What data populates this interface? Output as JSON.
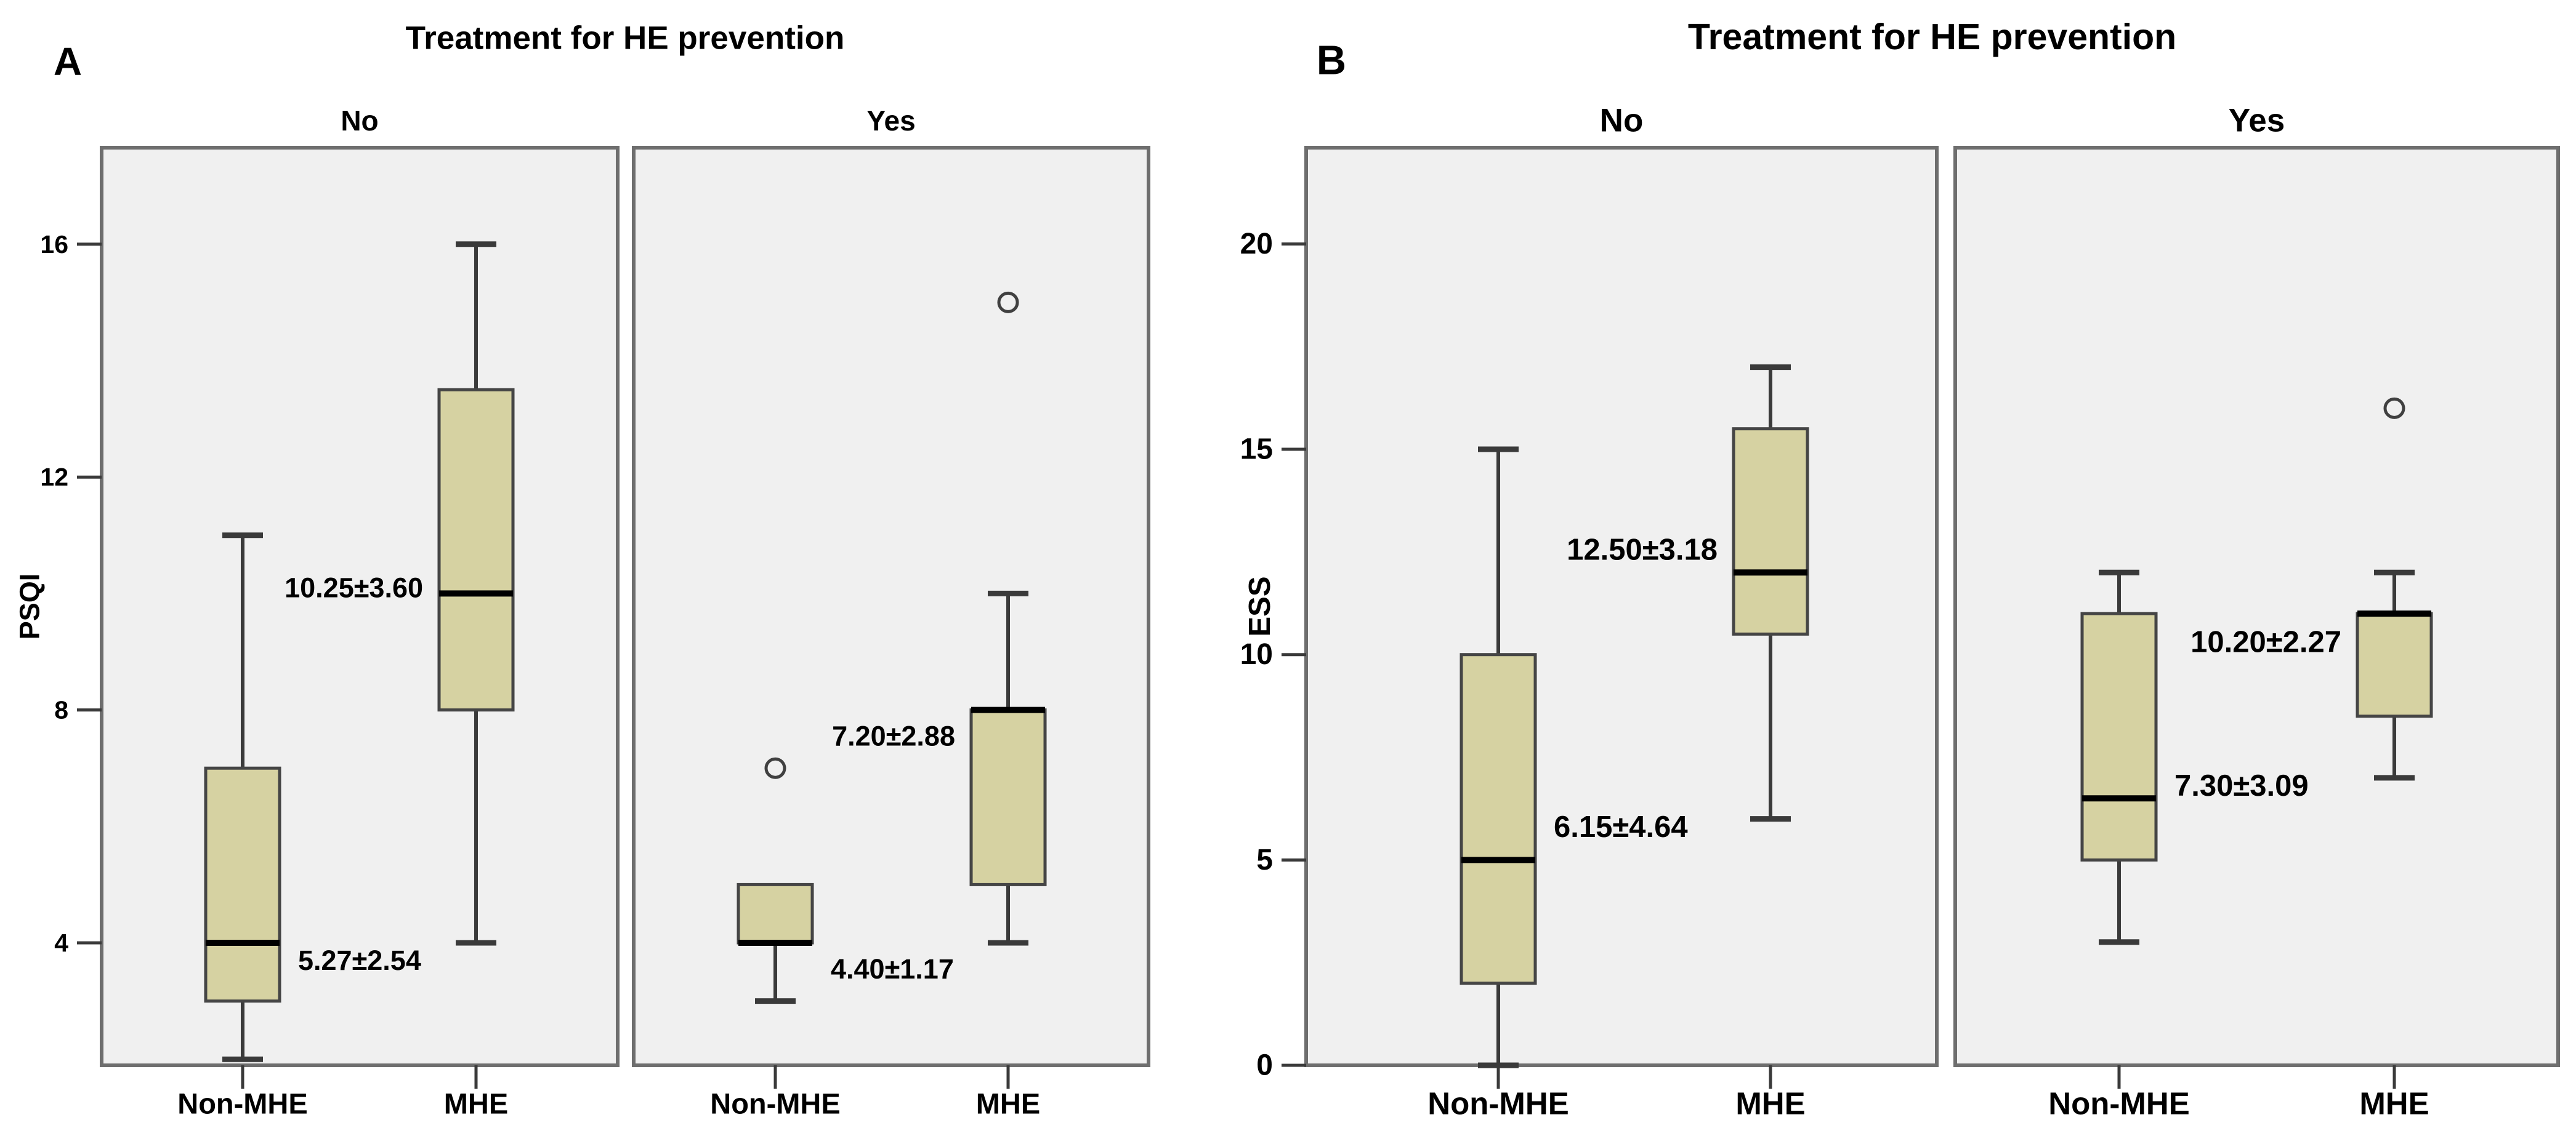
{
  "page": {
    "background_color": "#ffffff"
  },
  "style": {
    "box_fill": "#d6d2a2",
    "box_border": "#454545",
    "median_color": "#000000",
    "whisker_color": "#3a3a3a",
    "panel_background": "#f0f0f0",
    "panel_border": "#6e6e6e",
    "outlier_color": "#404040",
    "text_color": "#000000"
  },
  "chart_data": [
    {
      "type": "boxplot",
      "figure_label": "A",
      "title": "Treatment for HE prevention",
      "ylabel": "PSQI",
      "yticks": [
        4,
        8,
        12,
        16
      ],
      "ylim": [
        1.9,
        17.7
      ],
      "grid": false,
      "x_categories": [
        "Non-MHE",
        "MHE"
      ],
      "facets": [
        {
          "label": "No",
          "groups": [
            {
              "category": "Non-MHE",
              "whisker_low": 2,
              "q1": 3,
              "median": 4,
              "q3": 7,
              "whisker_high": 11,
              "outliers": [],
              "mean_sd": "5.27±2.54",
              "label_side": "right",
              "label_at": 3.7
            },
            {
              "category": "MHE",
              "whisker_low": 4,
              "q1": 8,
              "median": 10,
              "q3": 13.5,
              "whisker_high": 16,
              "outliers": [],
              "mean_sd": "10.25±3.60",
              "label_side": "left",
              "label_at": 10.1
            }
          ]
        },
        {
          "label": "Yes",
          "groups": [
            {
              "category": "Non-MHE",
              "whisker_low": 3,
              "q1": 4,
              "median": 4,
              "q3": 5,
              "whisker_high": 5,
              "outliers": [
                7
              ],
              "mean_sd": "4.40±1.17",
              "label_side": "right",
              "label_at": 3.55
            },
            {
              "category": "MHE",
              "whisker_low": 4,
              "q1": 5,
              "median": 8,
              "q3": 8,
              "whisker_high": 10,
              "outliers": [
                15
              ],
              "mean_sd": "7.20±2.88",
              "label_side": "left",
              "label_at": 7.55
            }
          ]
        }
      ]
    },
    {
      "type": "boxplot",
      "figure_label": "B",
      "title": "Treatment for HE prevention",
      "ylabel": "ESS",
      "yticks": [
        0,
        5,
        10,
        15,
        20
      ],
      "ylim": [
        0,
        22.3
      ],
      "grid": false,
      "x_categories": [
        "Non-MHE",
        "MHE"
      ],
      "facets": [
        {
          "label": "No",
          "groups": [
            {
              "category": "Non-MHE",
              "whisker_low": 0,
              "q1": 2,
              "median": 5,
              "q3": 10,
              "whisker_high": 15,
              "outliers": [],
              "mean_sd": "6.15±4.64",
              "label_side": "right",
              "label_at": 5.8
            },
            {
              "category": "MHE",
              "whisker_low": 6,
              "q1": 10.5,
              "median": 12,
              "q3": 15.5,
              "whisker_high": 17,
              "outliers": [],
              "mean_sd": "12.50±3.18",
              "label_side": "left",
              "label_at": 12.55
            }
          ]
        },
        {
          "label": "Yes",
          "groups": [
            {
              "category": "Non-MHE",
              "whisker_low": 3,
              "q1": 5,
              "median": 6.5,
              "q3": 11,
              "whisker_high": 12,
              "outliers": [],
              "mean_sd": "7.30±3.09",
              "label_side": "right",
              "label_at": 6.8
            },
            {
              "category": "MHE",
              "whisker_low": 7,
              "q1": 8.5,
              "median": 11,
              "q3": 11,
              "whisker_high": 12,
              "outliers": [
                16
              ],
              "mean_sd": "10.20±2.27",
              "label_side": "left",
              "label_at": 10.3
            }
          ]
        }
      ]
    }
  ]
}
